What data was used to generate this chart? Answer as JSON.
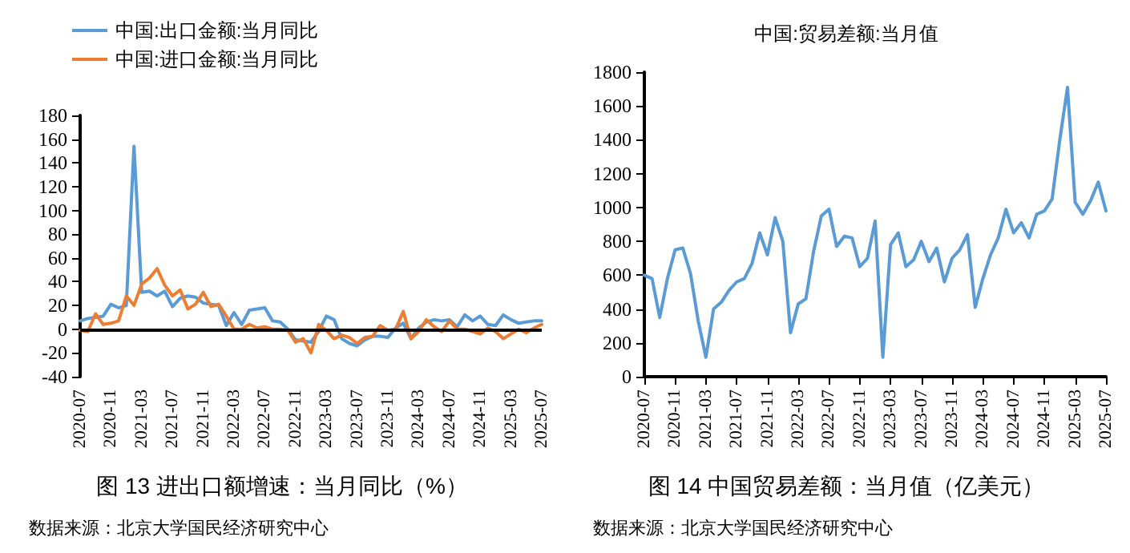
{
  "chart_data": [
    {
      "type": "line",
      "legend": "top left",
      "grid": false,
      "marker": "none",
      "line_style": "solid",
      "categories": [
        "2020-07",
        null,
        null,
        null,
        "2020-11",
        null,
        null,
        null,
        "2021-03",
        null,
        null,
        null,
        "2021-07",
        null,
        null,
        null,
        "2021-11",
        null,
        null,
        null,
        "2022-03",
        null,
        null,
        null,
        "2022-07",
        null,
        null,
        null,
        "2022-11",
        null,
        null,
        null,
        "2023-03",
        null,
        null,
        null,
        "2023-07",
        null,
        null,
        null,
        "2023-11",
        null,
        null,
        null,
        "2024-03",
        null,
        null,
        null,
        "2024-07",
        null,
        null,
        null,
        "2024-11",
        null,
        null,
        null,
        "2025-03",
        null,
        null,
        null,
        "2025-07"
      ],
      "ylim": [
        -40,
        180
      ],
      "yticks": [
        -40,
        -20,
        0,
        20,
        40,
        60,
        80,
        100,
        120,
        140,
        160,
        180
      ],
      "series": [
        {
          "name": "中国:出口金额:当月同比",
          "color": "#5b9bd5",
          "values": [
            7,
            9,
            10,
            11,
            21,
            18,
            20,
            154,
            31,
            32,
            28,
            32,
            19,
            26,
            28,
            27,
            22,
            21,
            20,
            3,
            14,
            4,
            16,
            17,
            18,
            7,
            6,
            0,
            -9,
            -10,
            -11,
            -2,
            11,
            8,
            -8,
            -12,
            -14,
            -9,
            -6,
            -6,
            -7,
            1,
            5,
            -8,
            1,
            6,
            8,
            7,
            8,
            2,
            12,
            7,
            11,
            4,
            3,
            12,
            8,
            5,
            6,
            7,
            7
          ]
        },
        {
          "name": "中国:进口金额:当月同比",
          "color": "#ed7d31",
          "values": [
            -1,
            -2,
            13,
            4,
            5,
            7,
            28,
            20,
            38,
            43,
            51,
            37,
            28,
            33,
            17,
            21,
            31,
            19,
            21,
            11,
            0,
            0,
            4,
            1,
            2,
            0,
            0,
            -1,
            -11,
            -8,
            -20,
            4,
            -1,
            -8,
            -5,
            -7,
            -12,
            -7,
            -6,
            3,
            -1,
            0,
            15,
            -8,
            -2,
            8,
            2,
            -2,
            7,
            0,
            0,
            -2,
            -4,
            1,
            -2,
            -8,
            -4,
            0,
            -3,
            1,
            4
          ]
        }
      ],
      "ref_lines": [
        {
          "axis": "y",
          "value": 0,
          "color": "#000000",
          "line_style": "solid"
        }
      ],
      "annotations": [
        "图 13 进出口额增速：当月同比（%）",
        "数据来源：北京大学国民经济研究中心"
      ]
    },
    {
      "type": "line",
      "title": "中国:贸易差额:当月值",
      "legend": false,
      "grid": false,
      "marker": "none",
      "line_style": "solid",
      "categories": [
        "2020-07",
        null,
        null,
        null,
        "2020-11",
        null,
        null,
        null,
        "2021-03",
        null,
        null,
        null,
        "2021-07",
        null,
        null,
        null,
        "2021-11",
        null,
        null,
        null,
        "2022-03",
        null,
        null,
        null,
        "2022-07",
        null,
        null,
        null,
        "2022-11",
        null,
        null,
        null,
        "2023-03",
        null,
        null,
        null,
        "2023-07",
        null,
        null,
        null,
        "2023-11",
        null,
        null,
        null,
        "2024-03",
        null,
        null,
        null,
        "2024-07",
        null,
        null,
        null,
        "2024-11",
        null,
        null,
        null,
        "2025-03",
        null,
        null,
        null,
        "2025-07"
      ],
      "ylim": [
        0,
        1800
      ],
      "yticks": [
        0,
        200,
        400,
        600,
        800,
        1000,
        1200,
        1400,
        1600,
        1800
      ],
      "series": [
        {
          "color": "#5b9bd5",
          "values": [
            600,
            580,
            350,
            580,
            750,
            760,
            610,
            330,
            115,
            400,
            440,
            510,
            560,
            580,
            670,
            850,
            720,
            940,
            800,
            260,
            430,
            460,
            740,
            950,
            990,
            770,
            830,
            820,
            650,
            700,
            920,
            115,
            780,
            850,
            650,
            690,
            800,
            680,
            760,
            560,
            700,
            750,
            840,
            410,
            580,
            720,
            820,
            990,
            850,
            910,
            820,
            960,
            980,
            1050,
            1400,
            1710,
            1030,
            960,
            1040,
            1150,
            980
          ]
        }
      ],
      "annotations": [
        "图 14 中国贸易差额：当月值（亿美元）",
        "数据来源：北京大学国民经济研究中心"
      ]
    }
  ]
}
